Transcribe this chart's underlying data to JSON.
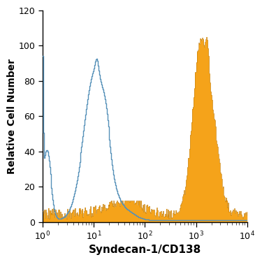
{
  "title": "",
  "xlabel": "Syndecan-1/CD138",
  "ylabel": "Relative Cell Number",
  "xlim_log": [
    0,
    4
  ],
  "ylim": [
    0,
    120
  ],
  "yticks": [
    0,
    20,
    40,
    60,
    80,
    100,
    120
  ],
  "background_color": "#ffffff",
  "blue_edge_color": "#5590b8",
  "orange_color": "#f5a31a",
  "orange_edge_color": "#c07800",
  "n_bins": 300
}
